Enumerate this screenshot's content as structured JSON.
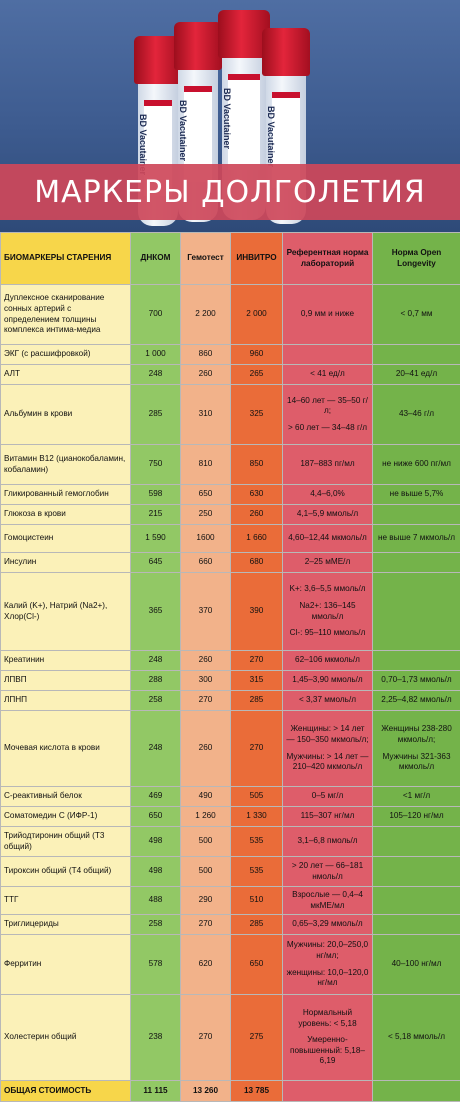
{
  "header": {
    "title": "МАРКЕРЫ ДОЛГОЛЕТИЯ"
  },
  "tubes": [
    {
      "label": "BD Vacutainer"
    },
    {
      "label": "BD Vacutainer"
    },
    {
      "label": "BD Vacutainer"
    },
    {
      "label": "BD Vacutainer"
    }
  ],
  "table": {
    "headers": {
      "name": "БИОМАРКЕРЫ СТАРЕНИЯ",
      "dnkom": "ДНКОМ",
      "gemotest": "Гемотест",
      "invitro": "ИНВИТРО",
      "ref": "Референтная норма лабораторий",
      "open": "Норма Open Longevity"
    },
    "rows": [
      {
        "name": "Дуплексное сканирование сонных артерий с определением толщины комплекса интима-медиа",
        "dnkom": "700",
        "gemotest": "2 200",
        "invitro": "2 000",
        "ref": [
          "0,9 мм и ниже"
        ],
        "open": [
          "< 0,7 мм"
        ],
        "h": 60
      },
      {
        "name": "ЭКГ (с расшифровкой)",
        "dnkom": "1 000",
        "gemotest": "860",
        "invitro": "960",
        "ref": [],
        "open": [],
        "h": 20
      },
      {
        "name": "АЛТ",
        "dnkom": "248",
        "gemotest": "260",
        "invitro": "265",
        "ref": [
          "< 41 ед/л"
        ],
        "open": [
          "20–41 ед/л"
        ],
        "h": 20
      },
      {
        "name": "Альбумин в крови",
        "dnkom": "285",
        "gemotest": "310",
        "invitro": "325",
        "ref": [
          "14–60 лет — 35–50 г/л;",
          "",
          "> 60 лет — 34–48 г/л"
        ],
        "open": [
          "43–46 г/л"
        ],
        "h": 60
      },
      {
        "name": "Витамин В12 (цианокобаламин, кобаламин)",
        "dnkom": "750",
        "gemotest": "810",
        "invitro": "850",
        "ref": [
          "187–883 пг/мл"
        ],
        "open": [
          "не ниже 600 пг/мл"
        ],
        "h": 40
      },
      {
        "name": "Гликированный гемоглобин",
        "dnkom": "598",
        "gemotest": "650",
        "invitro": "630",
        "ref": [
          "4,4–6,0%"
        ],
        "open": [
          "не выше 5,7%"
        ],
        "h": 20
      },
      {
        "name": "Глюкоза в крови",
        "dnkom": "215",
        "gemotest": "250",
        "invitro": "260",
        "ref": [
          "4,1–5,9 ммоль/л"
        ],
        "open": [],
        "h": 20
      },
      {
        "name": "Гомоцистеин",
        "dnkom": "1 590",
        "gemotest": "1600",
        "invitro": "1 660",
        "ref": [
          "4,60–12,44 мкмоль/л"
        ],
        "open": [
          "не выше 7 мкмоль/л"
        ],
        "h": 28
      },
      {
        "name": "Инсулин",
        "dnkom": "645",
        "gemotest": "660",
        "invitro": "680",
        "ref": [
          "2–25 мМЕ/л"
        ],
        "open": [],
        "h": 20
      },
      {
        "name": "Калий (K+), Натрий (Na2+), Хлор(Cl-)",
        "dnkom": "365",
        "gemotest": "370",
        "invitro": "390",
        "ref": [
          "K+: 3,6–5,5 ммоль/л",
          "",
          "Na2+: 136–145 ммоль/л",
          "",
          "Cl-: 95–110 ммоль/л"
        ],
        "open": [],
        "h": 78
      },
      {
        "name": "Креатинин",
        "dnkom": "248",
        "gemotest": "260",
        "invitro": "270",
        "ref": [
          "62–106 мкмоль/л"
        ],
        "open": [],
        "h": 20
      },
      {
        "name": "ЛПВП",
        "dnkom": "288",
        "gemotest": "300",
        "invitro": "315",
        "ref": [
          "1,45–3,90 ммоль/л"
        ],
        "open": [
          "0,70–1,73 ммоль/л"
        ],
        "h": 20
      },
      {
        "name": "ЛПНП",
        "dnkom": "258",
        "gemotest": "270",
        "invitro": "285",
        "ref": [
          "< 3,37 ммоль/л"
        ],
        "open": [
          "2,25–4,82 ммоль/л"
        ],
        "h": 20
      },
      {
        "name": "Мочевая кислота в крови",
        "dnkom": "248",
        "gemotest": "260",
        "invitro": "270",
        "ref": [
          "Женщины: > 14 лет — 150–350 мкмоль/л;",
          "",
          "Мужчины: > 14 лет — 210–420 мкмоль/л"
        ],
        "open": [
          "Женщины 238-280 мкмоль/л;",
          "",
          "Мужчины 321-363 мкмоль/л"
        ],
        "h": 76
      },
      {
        "name": "С-реактивный белок",
        "dnkom": "469",
        "gemotest": "490",
        "invitro": "505",
        "ref": [
          "0–5 мг/л"
        ],
        "open": [
          "<1 мг/л"
        ],
        "h": 20
      },
      {
        "name": "Соматомедин С (ИФР-1)",
        "dnkom": "650",
        "gemotest": "1 260",
        "invitro": "1 330",
        "ref": [
          "115–307 нг/мл"
        ],
        "open": [
          "105–120 нг/мл"
        ],
        "h": 20
      },
      {
        "name": "Трийодтиронин общий (Т3 общий)",
        "dnkom": "498",
        "gemotest": "500",
        "invitro": "535",
        "ref": [
          "3,1–6,8 пмоль/л"
        ],
        "open": [],
        "h": 30
      },
      {
        "name": "Тироксин общий (Т4 общий)",
        "dnkom": "498",
        "gemotest": "500",
        "invitro": "535",
        "ref": [
          "> 20 лет — 66–181 нмоль/л"
        ],
        "open": [],
        "h": 30
      },
      {
        "name": "ТТГ",
        "dnkom": "488",
        "gemotest": "290",
        "invitro": "510",
        "ref": [
          "Взрослые — 0,4–4 мкМЕ/мл"
        ],
        "open": [],
        "h": 28
      },
      {
        "name": "Триглицериды",
        "dnkom": "258",
        "gemotest": "270",
        "invitro": "285",
        "ref": [
          "0,65–3,29 ммоль/л"
        ],
        "open": [],
        "h": 20
      },
      {
        "name": "Ферритин",
        "dnkom": "578",
        "gemotest": "620",
        "invitro": "650",
        "ref": [
          "Мужчины: 20,0–250,0 нг/мл;",
          "",
          "женщины: 10,0–120,0 нг/мл"
        ],
        "open": [
          "40–100 нг/мл"
        ],
        "h": 60
      },
      {
        "name": "Холестерин общий",
        "dnkom": "238",
        "gemotest": "270",
        "invitro": "275",
        "ref": [
          "Нормальный уровень: < 5,18",
          "",
          "Умеренно-повышенный: 5,18–6,19"
        ],
        "open": [
          "< 5,18 ммоль/л"
        ],
        "h": 86
      }
    ],
    "total": {
      "label": "ОБЩАЯ СТОИМОСТЬ",
      "dnkom": "11 115",
      "gemotest": "13 260",
      "invitro": "13 785"
    }
  },
  "colors": {
    "name_col": "#fbf1b8",
    "dnkom_col": "#92c865",
    "gemotest_col": "#f2b28a",
    "invitro_col": "#ea6c39",
    "ref_col": "#de5d6a",
    "open_col": "#74b34a"
  }
}
